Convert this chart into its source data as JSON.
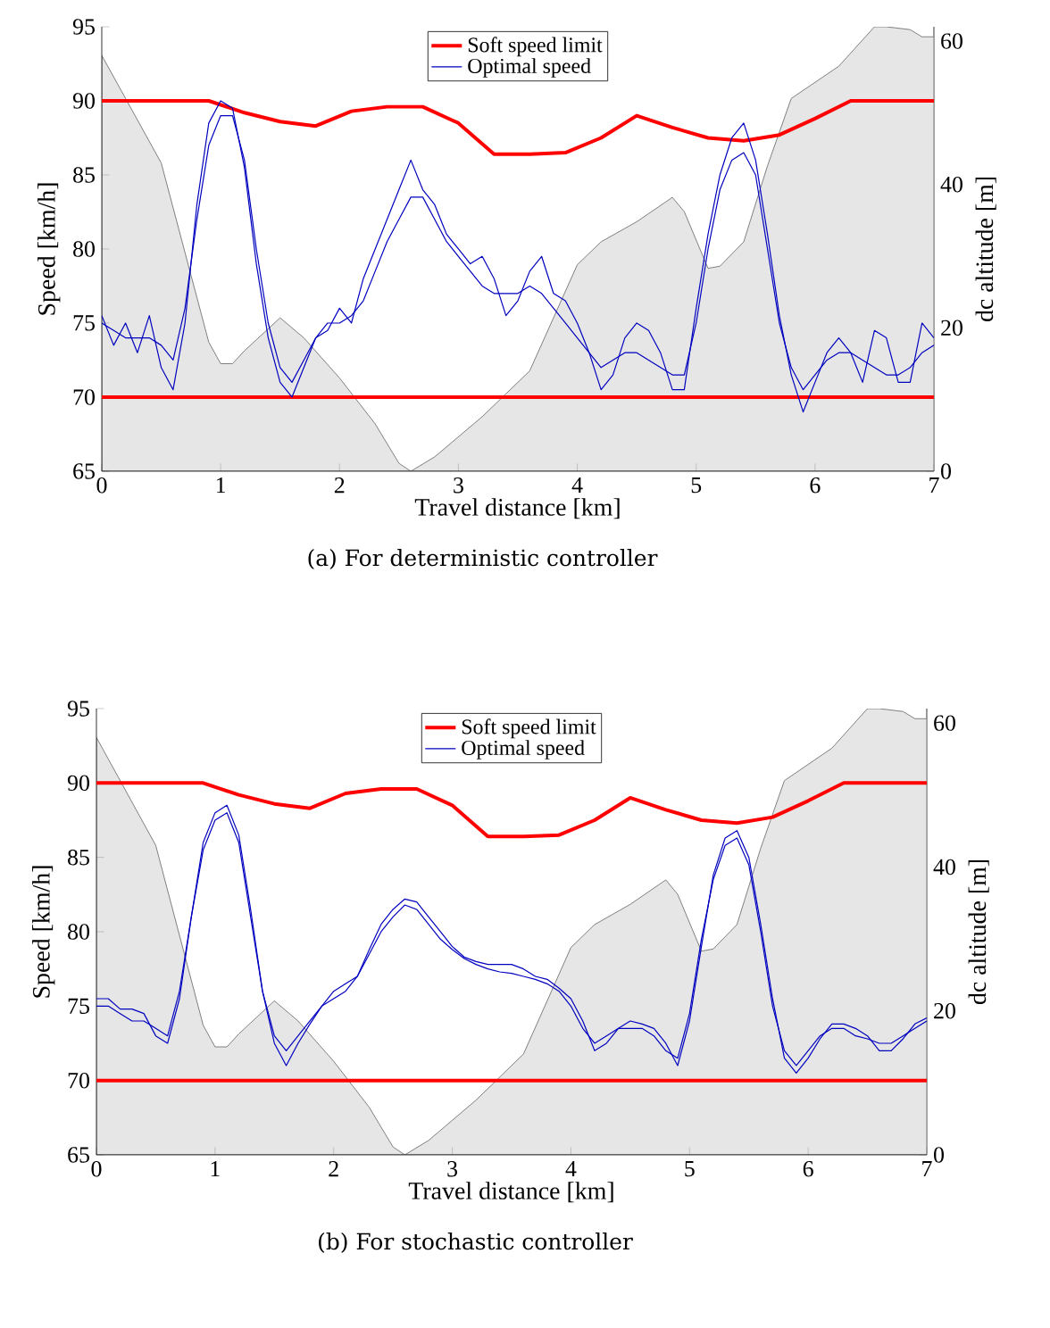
{
  "chart_data": [
    {
      "type": "line",
      "xlabel": "Travel distance [km]",
      "ylabel": "Speed [km/h]",
      "y2label": "dc altitude [m]",
      "xlim": [
        0,
        7
      ],
      "xticks": [
        0,
        1,
        2,
        3,
        4,
        5,
        6,
        7
      ],
      "ylim": [
        65,
        95
      ],
      "yticks": [
        65,
        70,
        75,
        80,
        85,
        90,
        95
      ],
      "y2lim": [
        0,
        62
      ],
      "y2ticks": [
        0,
        20,
        40,
        60
      ],
      "legend": "top",
      "annotations": [
        "(a)  For deterministic controller"
      ],
      "series": [
        {
          "type": "area",
          "axis": "y2",
          "color": "#e6e6e6",
          "x": [
            0,
            0.5,
            0.9,
            1.0,
            1.1,
            1.2,
            1.5,
            1.7,
            2.0,
            2.3,
            2.5,
            2.6,
            2.8,
            3.2,
            3.6,
            4.0,
            4.2,
            4.5,
            4.8,
            4.9,
            5.1,
            5.2,
            5.4,
            5.6,
            5.8,
            6.2,
            6.5,
            6.6,
            6.8,
            6.9,
            7.0
          ],
          "values": [
            58,
            43,
            18,
            15,
            15,
            16.8,
            21.4,
            18.6,
            13,
            6.6,
            1.1,
            0,
            2,
            7.6,
            14,
            28.8,
            32,
            34.8,
            38.2,
            36.2,
            28.3,
            28.6,
            32,
            42.6,
            52,
            56.5,
            62,
            62,
            61.6,
            60.6,
            60.6
          ]
        },
        {
          "name": "Soft speed limit",
          "color": "#ff0000",
          "x": [
            0,
            0.9,
            1.2,
            1.5,
            1.8,
            2.1,
            2.4,
            2.7,
            3.0,
            3.3,
            3.6,
            3.9,
            4.2,
            4.5,
            4.8,
            5.1,
            5.4,
            5.7,
            6.0,
            6.3,
            7.0
          ],
          "values": [
            90,
            90,
            89.2,
            88.6,
            88.3,
            89.3,
            89.6,
            89.6,
            88.5,
            86.4,
            86.4,
            86.5,
            87.5,
            89,
            88.2,
            87.5,
            87.3,
            87.7,
            88.8,
            90,
            90
          ]
        },
        {
          "color": "#ff0000",
          "x": [
            0,
            7
          ],
          "values": [
            70,
            70
          ]
        },
        {
          "name": "Optimal speed",
          "color": "#0000bf",
          "x": [
            0,
            0.1,
            0.2,
            0.3,
            0.4,
            0.5,
            0.6,
            0.7,
            0.8,
            0.9,
            1.0,
            1.1,
            1.2,
            1.3,
            1.4,
            1.5,
            1.6,
            1.7,
            1.8,
            1.9,
            2.0,
            2.1,
            2.2,
            2.3,
            2.4,
            2.5,
            2.6,
            2.7,
            2.8,
            2.9,
            3.0,
            3.1,
            3.2,
            3.3,
            3.4,
            3.5,
            3.6,
            3.7,
            3.8,
            3.9,
            4.0,
            4.1,
            4.2,
            4.3,
            4.4,
            4.5,
            4.6,
            4.7,
            4.8,
            4.9,
            5.0,
            5.1,
            5.2,
            5.3,
            5.4,
            5.5,
            5.6,
            5.7,
            5.8,
            5.9,
            6.0,
            6.1,
            6.2,
            6.3,
            6.4,
            6.5,
            6.6,
            6.7,
            6.8,
            6.9,
            7.0
          ],
          "values": [
            75,
            74.5,
            74,
            74,
            74,
            73.5,
            72.5,
            76,
            82,
            87,
            89,
            89,
            86,
            80,
            75,
            72,
            71,
            72.5,
            74,
            75,
            75,
            75.5,
            76.5,
            78.5,
            80.5,
            82,
            83.5,
            83.5,
            82,
            80.5,
            79.5,
            78.5,
            77.5,
            77,
            77,
            77,
            77.5,
            77,
            76,
            75,
            74,
            73,
            72,
            72.5,
            73,
            73,
            72.5,
            72,
            71.5,
            71.5,
            75,
            80,
            84,
            86,
            86.5,
            85,
            80,
            75,
            72,
            70.5,
            71.5,
            72.5,
            73,
            73,
            72.5,
            72,
            71.5,
            71.5,
            72,
            73,
            73.5
          ]
        },
        {
          "color": "#0000bf",
          "x": [
            0,
            0.1,
            0.2,
            0.3,
            0.4,
            0.5,
            0.6,
            0.7,
            0.8,
            0.9,
            1.0,
            1.1,
            1.2,
            1.3,
            1.4,
            1.5,
            1.6,
            1.7,
            1.8,
            1.9,
            2.0,
            2.1,
            2.2,
            2.3,
            2.4,
            2.5,
            2.6,
            2.7,
            2.8,
            2.9,
            3.0,
            3.1,
            3.2,
            3.3,
            3.4,
            3.5,
            3.6,
            3.7,
            3.8,
            3.9,
            4.0,
            4.1,
            4.2,
            4.3,
            4.4,
            4.5,
            4.6,
            4.7,
            4.8,
            4.9,
            5.0,
            5.1,
            5.2,
            5.3,
            5.4,
            5.5,
            5.6,
            5.7,
            5.8,
            5.9,
            6.0,
            6.1,
            6.2,
            6.3,
            6.4,
            6.5,
            6.6,
            6.7,
            6.8,
            6.9,
            7.0
          ],
          "values": [
            75.5,
            73.5,
            75,
            73,
            75.5,
            72,
            70.5,
            75,
            83,
            88.5,
            90,
            89.5,
            85.5,
            79,
            74,
            71,
            70,
            72,
            74,
            74.5,
            76,
            75,
            78,
            80,
            82,
            84,
            86,
            84,
            83,
            81,
            80,
            79,
            79.5,
            78,
            75.5,
            76.5,
            78.5,
            79.5,
            77,
            76.5,
            75,
            73,
            70.5,
            71.5,
            74,
            75,
            74.5,
            73,
            70.5,
            70.5,
            76,
            81,
            85,
            87.5,
            88.5,
            86,
            81,
            75.5,
            71.5,
            69,
            71,
            73,
            74,
            73,
            71,
            74.5,
            74,
            71,
            71,
            75,
            74
          ]
        }
      ]
    },
    {
      "type": "line",
      "xlabel": "Travel distance [km]",
      "ylabel": "Speed [km/h]",
      "y2label": "dc altitude [m]",
      "xlim": [
        0,
        7
      ],
      "xticks": [
        0,
        1,
        2,
        3,
        4,
        5,
        6,
        7
      ],
      "ylim": [
        65,
        95
      ],
      "yticks": [
        65,
        70,
        75,
        80,
        85,
        90,
        95
      ],
      "y2lim": [
        0,
        62
      ],
      "y2ticks": [
        0,
        20,
        40,
        60
      ],
      "legend": "top",
      "annotations": [
        "(b)  For stochastic controller"
      ],
      "series": [
        {
          "type": "area",
          "axis": "y2",
          "color": "#e6e6e6",
          "x": [
            0,
            0.5,
            0.9,
            1.0,
            1.1,
            1.2,
            1.5,
            1.7,
            2.0,
            2.3,
            2.5,
            2.6,
            2.8,
            3.2,
            3.6,
            4.0,
            4.2,
            4.5,
            4.8,
            4.9,
            5.1,
            5.2,
            5.4,
            5.6,
            5.8,
            6.2,
            6.5,
            6.6,
            6.8,
            6.9,
            7.0
          ],
          "values": [
            58,
            43,
            18,
            15,
            15,
            16.8,
            21.4,
            18.6,
            13,
            6.6,
            1.1,
            0,
            2,
            7.6,
            14,
            28.8,
            32,
            34.8,
            38.2,
            36.2,
            28.3,
            28.6,
            32,
            42.6,
            52,
            56.5,
            62,
            62,
            61.6,
            60.6,
            60.6
          ]
        },
        {
          "name": "Soft speed limit",
          "color": "#ff0000",
          "x": [
            0,
            0.9,
            1.2,
            1.5,
            1.8,
            2.1,
            2.4,
            2.7,
            3.0,
            3.3,
            3.6,
            3.9,
            4.2,
            4.5,
            4.8,
            5.1,
            5.4,
            5.7,
            6.0,
            6.3,
            7.0
          ],
          "values": [
            90,
            90,
            89.2,
            88.6,
            88.3,
            89.3,
            89.6,
            89.6,
            88.5,
            86.4,
            86.4,
            86.5,
            87.5,
            89,
            88.2,
            87.5,
            87.3,
            87.7,
            88.8,
            90,
            90
          ]
        },
        {
          "color": "#ff0000",
          "x": [
            0,
            7
          ],
          "values": [
            70,
            70
          ]
        },
        {
          "name": "Optimal speed",
          "color": "#0000bf",
          "x": [
            0,
            0.1,
            0.2,
            0.3,
            0.4,
            0.5,
            0.6,
            0.7,
            0.8,
            0.9,
            1.0,
            1.1,
            1.2,
            1.3,
            1.4,
            1.5,
            1.6,
            1.7,
            1.8,
            1.9,
            2.0,
            2.1,
            2.2,
            2.3,
            2.4,
            2.5,
            2.6,
            2.7,
            2.8,
            2.9,
            3.0,
            3.1,
            3.2,
            3.3,
            3.4,
            3.5,
            3.6,
            3.7,
            3.8,
            3.9,
            4.0,
            4.1,
            4.2,
            4.3,
            4.4,
            4.5,
            4.6,
            4.7,
            4.8,
            4.9,
            5.0,
            5.1,
            5.2,
            5.3,
            5.4,
            5.5,
            5.6,
            5.7,
            5.8,
            5.9,
            6.0,
            6.1,
            6.2,
            6.3,
            6.4,
            6.5,
            6.6,
            6.7,
            6.8,
            6.9,
            7.0
          ],
          "values": [
            75,
            75,
            74.5,
            74,
            74,
            73.5,
            73,
            76,
            81,
            85.5,
            87.5,
            88,
            86,
            81,
            76,
            73,
            72,
            73,
            74,
            75,
            75.5,
            76,
            77,
            78.5,
            80,
            81,
            81.8,
            81.5,
            80.5,
            79.5,
            78.8,
            78.2,
            77.8,
            77.5,
            77.3,
            77.2,
            77,
            76.8,
            76.5,
            76,
            75,
            73.5,
            72.5,
            73,
            73.5,
            73.5,
            73.5,
            73,
            72,
            71.5,
            74.5,
            79.5,
            83.5,
            85.8,
            86.3,
            84.5,
            80,
            75,
            72,
            71,
            72,
            73,
            73.5,
            73.5,
            73,
            72.8,
            72.5,
            72.5,
            73,
            73.5,
            74
          ]
        },
        {
          "color": "#0000bf",
          "x": [
            0,
            0.1,
            0.2,
            0.3,
            0.4,
            0.5,
            0.6,
            0.7,
            0.8,
            0.9,
            1.0,
            1.1,
            1.2,
            1.3,
            1.4,
            1.5,
            1.6,
            1.7,
            1.8,
            1.9,
            2.0,
            2.1,
            2.2,
            2.3,
            2.4,
            2.5,
            2.6,
            2.7,
            2.8,
            2.9,
            3.0,
            3.1,
            3.2,
            3.3,
            3.4,
            3.5,
            3.6,
            3.7,
            3.8,
            3.9,
            4.0,
            4.1,
            4.2,
            4.3,
            4.4,
            4.5,
            4.6,
            4.7,
            4.8,
            4.9,
            5.0,
            5.1,
            5.2,
            5.3,
            5.4,
            5.5,
            5.6,
            5.7,
            5.8,
            5.9,
            6.0,
            6.1,
            6.2,
            6.3,
            6.4,
            6.5,
            6.6,
            6.7,
            6.8,
            6.9,
            7.0
          ],
          "values": [
            75.5,
            75.5,
            74.8,
            74.8,
            74.5,
            73,
            72.5,
            75.5,
            81,
            86,
            88,
            88.5,
            86.5,
            81.5,
            76,
            72.5,
            71,
            72.5,
            73.8,
            75,
            76,
            76.5,
            77,
            78.8,
            80.5,
            81.5,
            82.2,
            82,
            81,
            80,
            79,
            78.3,
            78,
            77.8,
            77.8,
            77.8,
            77.5,
            77,
            76.8,
            76.2,
            75.5,
            74,
            72,
            72.5,
            73.5,
            74,
            73.8,
            73.5,
            72.5,
            71,
            74,
            79,
            83.8,
            86.3,
            86.8,
            85,
            80.5,
            75.5,
            71.5,
            70.5,
            71.5,
            72.8,
            73.8,
            73.8,
            73.5,
            73,
            72,
            72,
            72.8,
            73.8,
            74.2
          ]
        }
      ]
    }
  ]
}
